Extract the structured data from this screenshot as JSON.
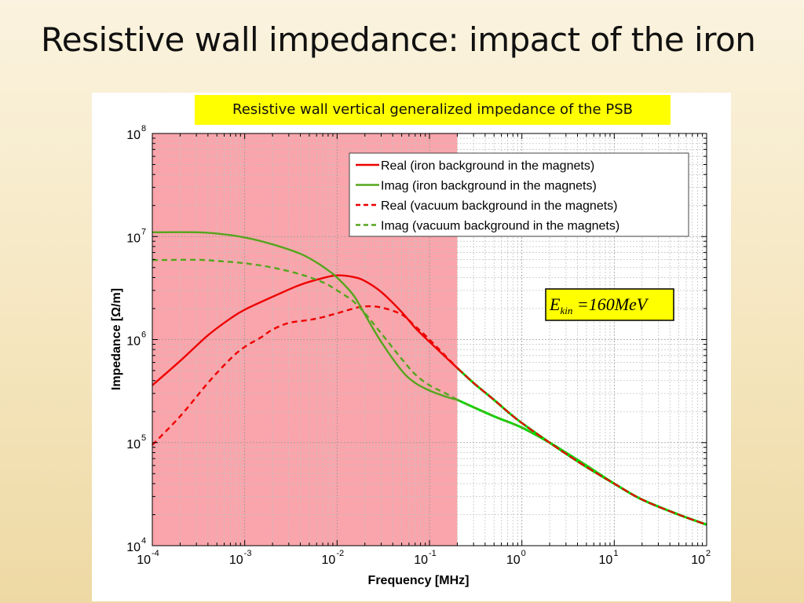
{
  "slide": {
    "title": "Resistive wall impedance: impact of the iron",
    "banner": "Resistive wall vertical generalized impedance of the PSB"
  },
  "chart_data": {
    "type": "line",
    "xlabel": "Frequency [MHz]",
    "ylabel": "Impedance [Ω/m]",
    "x_scale": "log",
    "y_scale": "log",
    "xlim": [
      0.0001,
      100
    ],
    "ylim": [
      10000,
      100000000
    ],
    "grid": true,
    "legend_position": "top-right",
    "x_ticks": [
      {
        "base": "10",
        "exp": "-4",
        "value": 0.0001
      },
      {
        "base": "10",
        "exp": "-3",
        "value": 0.001
      },
      {
        "base": "10",
        "exp": "-2",
        "value": 0.01
      },
      {
        "base": "10",
        "exp": "-1",
        "value": 0.1
      },
      {
        "base": "10",
        "exp": "0",
        "value": 1
      },
      {
        "base": "10",
        "exp": "1",
        "value": 10
      },
      {
        "base": "10",
        "exp": "2",
        "value": 100
      }
    ],
    "y_ticks": [
      {
        "base": "10",
        "exp": "4",
        "value": 10000
      },
      {
        "base": "10",
        "exp": "5",
        "value": 100000
      },
      {
        "base": "10",
        "exp": "6",
        "value": 1000000
      },
      {
        "base": "10",
        "exp": "7",
        "value": 10000000
      },
      {
        "base": "10",
        "exp": "8",
        "value": 100000000
      }
    ],
    "highlight_region": {
      "x_from": 0.0001,
      "x_to": 0.2,
      "color": "#f9a5ab"
    },
    "annotation": {
      "base": "E",
      "subscript": "kin",
      "rest": " =160MeV",
      "background": "#ffff00"
    },
    "series": [
      {
        "name": "Real (iron background in the magnets)",
        "color": "#ee0000",
        "dash": "solid",
        "x": [
          0.0001,
          0.0002,
          0.0004,
          0.0007,
          0.001,
          0.002,
          0.004,
          0.007,
          0.01,
          0.015,
          0.02,
          0.03,
          0.05,
          0.07,
          0.1,
          0.2
        ],
        "y": [
          360000,
          620000,
          1100000,
          1600000,
          1950000,
          2600000,
          3400000,
          3950000,
          4200000,
          4050000,
          3700000,
          2900000,
          1850000,
          1300000,
          950000,
          530000
        ]
      },
      {
        "name": "Imag (iron background in the magnets)",
        "color": "#55a51e",
        "dash": "solid",
        "x": [
          0.0001,
          0.0003,
          0.0005,
          0.001,
          0.002,
          0.004,
          0.006,
          0.008,
          0.01,
          0.015,
          0.02,
          0.03,
          0.05,
          0.07,
          0.1,
          0.15,
          0.2
        ],
        "y": [
          11000000,
          11000000,
          10700000,
          9800000,
          8400000,
          6800000,
          5600000,
          4700000,
          4000000,
          2700000,
          1750000,
          950000,
          500000,
          380000,
          320000,
          280000,
          260000
        ]
      },
      {
        "name": "Real (vacuum background in the magnets)",
        "color": "#ee0000",
        "dash": "dashed",
        "x": [
          0.0001,
          0.0002,
          0.0004,
          0.0007,
          0.001,
          0.0015,
          0.002,
          0.003,
          0.005,
          0.007,
          0.01,
          0.015,
          0.02,
          0.03,
          0.05,
          0.07,
          0.1,
          0.2
        ],
        "y": [
          95000,
          180000,
          380000,
          650000,
          850000,
          1050000,
          1250000,
          1450000,
          1550000,
          1650000,
          1800000,
          2000000,
          2100000,
          2050000,
          1750000,
          1350000,
          1000000,
          530000
        ]
      },
      {
        "name": "Imag (vacuum background in the magnets)",
        "color": "#55a51e",
        "dash": "dashed",
        "x": [
          0.0001,
          0.0003,
          0.0005,
          0.001,
          0.002,
          0.004,
          0.007,
          0.01,
          0.015,
          0.02,
          0.03,
          0.05,
          0.07,
          0.1,
          0.15,
          0.2
        ],
        "y": [
          5900000,
          5950000,
          5800000,
          5500000,
          5000000,
          4300000,
          3600000,
          3000000,
          2350000,
          1800000,
          1150000,
          650000,
          460000,
          360000,
          300000,
          260000
        ]
      }
    ],
    "common_tail": {
      "real": {
        "colors": [
          "#ee0000",
          "#00dd00"
        ],
        "x": [
          0.2,
          0.3,
          0.5,
          0.7,
          1,
          2,
          3,
          5,
          10,
          20,
          50,
          100
        ],
        "y": [
          530000,
          380000,
          260000,
          200000,
          155000,
          100000,
          78000,
          58000,
          40000,
          28000,
          20000,
          16000
        ]
      },
      "imag": {
        "colors": [
          "#00dd00",
          "#55a51e"
        ],
        "x": [
          0.2,
          0.5,
          1,
          2,
          3,
          5,
          10,
          20,
          50,
          100
        ],
        "y": [
          260000,
          180000,
          140000,
          100000,
          80000,
          60000,
          40000,
          28000,
          20000,
          16000
        ]
      }
    }
  }
}
